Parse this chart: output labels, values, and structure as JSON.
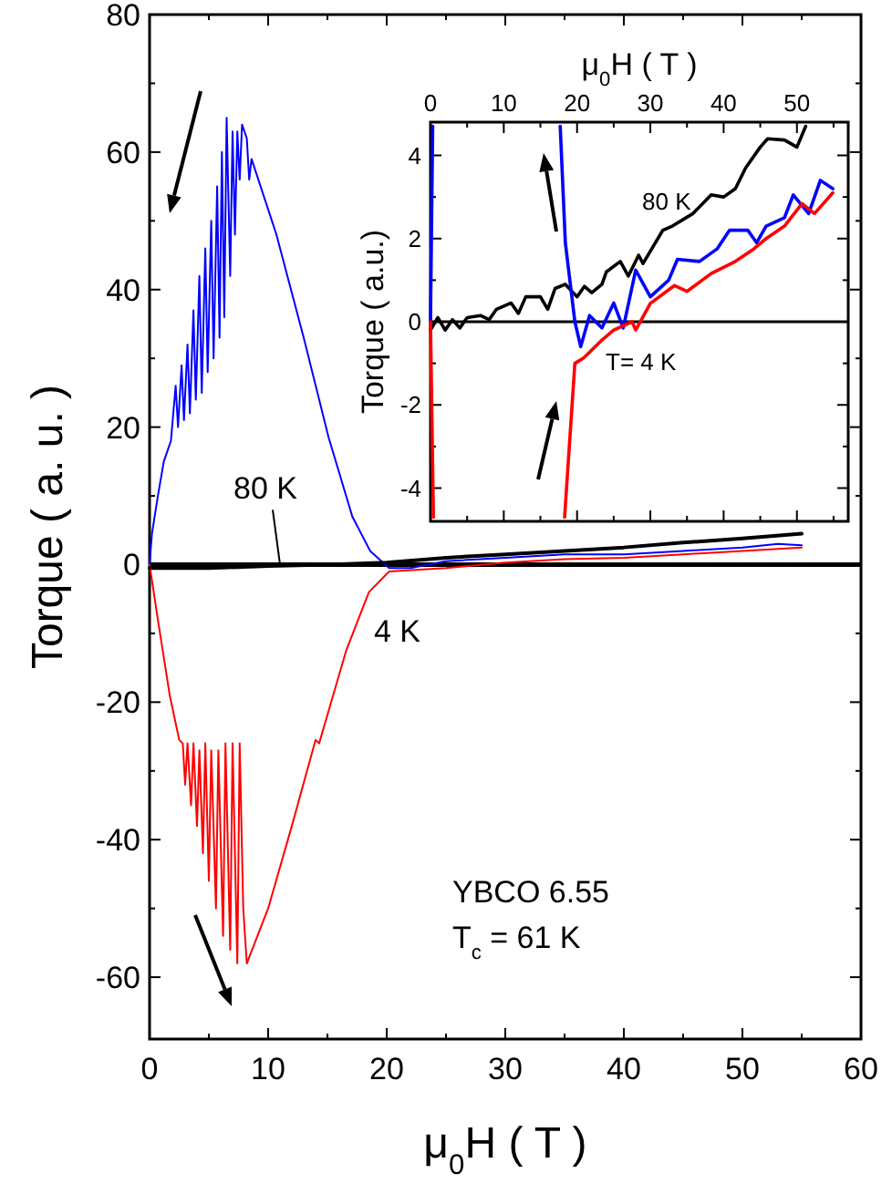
{
  "chart_data": [
    {
      "type": "line",
      "xlabel": "μ$_{0}$H ( T )",
      "ylabel": "Torque ( a. u. )",
      "xlim": [
        0,
        60
      ],
      "ylim": [
        -69,
        80
      ],
      "xticks": [
        0,
        {
          "value": 5,
          "label": null
        },
        10,
        {
          "value": 15,
          "label": null
        },
        20,
        {
          "value": 25,
          "label": null
        },
        30,
        {
          "value": 35,
          "label": null
        },
        40,
        {
          "value": 45,
          "label": null
        },
        50,
        {
          "value": 55,
          "label": null
        },
        60
      ],
      "yticks": [
        -60,
        {
          "value": -50,
          "label": null
        },
        -40,
        {
          "value": -30,
          "label": null
        },
        -20,
        {
          "value": -10,
          "label": null
        },
        0,
        {
          "value": 10,
          "label": null
        },
        20,
        {
          "value": 30,
          "label": null
        },
        40,
        {
          "value": 50,
          "label": null
        },
        60,
        {
          "value": 70,
          "label": null
        },
        80
      ],
      "grid": false,
      "line_style": "solid",
      "ref_lines": [
        {
          "axis": "y",
          "value": 0,
          "color": "#000000"
        }
      ],
      "series": [
        {
          "color": "#0000ff",
          "x": [
            0,
            0.2,
            0.7,
            1.2,
            1.8,
            2.2,
            2.4,
            2.7,
            2.9,
            3.2,
            3.4,
            3.7,
            3.9,
            4.2,
            4.4,
            4.7,
            4.9,
            5.2,
            5.4,
            5.7,
            5.9,
            6.1,
            6.3,
            6.5,
            6.8,
            7.0,
            7.2,
            7.4,
            7.6,
            7.8,
            8.2,
            8.4,
            8.6,
            10.7,
            13,
            15.1,
            17.1,
            18.6,
            20.2,
            22,
            25,
            30,
            35,
            40,
            45,
            50,
            53,
            55
          ],
          "values": [
            0,
            4.5,
            10,
            15,
            18,
            26,
            20,
            29,
            21,
            32,
            22,
            37,
            24,
            42,
            25,
            46,
            28,
            50,
            30,
            55,
            33,
            60,
            36,
            65,
            42,
            63,
            48,
            63,
            56,
            64,
            62,
            56,
            59,
            48,
            33,
            18.5,
            7,
            2,
            -0.5,
            -0.5,
            0.5,
            1,
            1.5,
            1.5,
            2,
            2.5,
            3,
            2.8
          ]
        },
        {
          "color": "#ff0000",
          "x": [
            0,
            0.7,
            1.7,
            2.5,
            2.8,
            3.0,
            3.2,
            3.5,
            3.7,
            4.0,
            4.2,
            4.5,
            4.7,
            5.0,
            5.2,
            5.6,
            5.8,
            6.2,
            6.4,
            6.8,
            7.0,
            7.4,
            7.6,
            7.9,
            8.2,
            10,
            12,
            14,
            14.3,
            16.6,
            18.5,
            20.2,
            25,
            30,
            35,
            40,
            45,
            50,
            55
          ],
          "values": [
            0,
            -8,
            -19,
            -25.5,
            -26,
            -32,
            -26,
            -35,
            -26,
            -38,
            -27,
            -42,
            -26,
            -46,
            -27,
            -50,
            -27,
            -54,
            -26,
            -56,
            -26,
            -58,
            -26,
            -50,
            -58,
            -50,
            -38,
            -25.5,
            -26,
            -12.4,
            -4,
            -1,
            -0.5,
            0.3,
            0.8,
            1,
            1.5,
            2,
            2.5
          ]
        },
        {
          "color": "#000000",
          "x": [
            0,
            5,
            10,
            15,
            20,
            25,
            30,
            35,
            40,
            45,
            50,
            55
          ],
          "values": [
            -0.5,
            -0.5,
            -0.2,
            0,
            0.3,
            1,
            1.5,
            2,
            2.5,
            3.2,
            3.8,
            4.5
          ]
        }
      ],
      "annotations": [
        {
          "text": "80 K",
          "x": 11,
          "y": 0
        },
        "4 K",
        "YBCO 6.55",
        "T$_{c}$ = 61 K"
      ]
    },
    {
      "type": "line",
      "xlabel": "μ$_{0}$H ( T )",
      "ylabel": "Torque ( a.u.)",
      "xlim": [
        0,
        57
      ],
      "ylim": [
        -4.8,
        4.8
      ],
      "xticks": [
        0,
        {
          "value": 5,
          "label": null
        },
        10,
        {
          "value": 15,
          "label": null
        },
        20,
        {
          "value": 25,
          "label": null
        },
        30,
        {
          "value": 35,
          "label": null
        },
        40,
        {
          "value": 45,
          "label": null
        },
        50,
        {
          "value": 55,
          "label": null
        }
      ],
      "yticks": [
        -4,
        {
          "value": -3,
          "label": null
        },
        -2,
        {
          "value": -1,
          "label": null
        },
        0,
        {
          "value": 1,
          "label": null
        },
        2,
        {
          "value": 3,
          "label": null
        },
        4
      ],
      "grid": false,
      "line_style": "solid",
      "ref_lines": [
        {
          "axis": "y",
          "value": 0,
          "color": "#000000"
        }
      ],
      "series": [
        {
          "color": "#000000",
          "x": [
            0,
            1,
            2,
            3,
            4,
            5,
            6.8,
            8,
            9,
            11,
            12,
            13,
            15,
            16,
            17,
            18.4,
            20,
            21,
            22,
            23.4,
            24,
            25.9,
            27,
            28.4,
            29,
            31.7,
            33,
            35.8,
            38.3,
            40,
            41.6,
            43,
            45,
            46,
            48.3,
            50,
            51.2
          ],
          "values": [
            -0.2,
            0.1,
            -0.2,
            0.05,
            -0.15,
            0.1,
            0.15,
            0.05,
            0.3,
            0.45,
            0.2,
            0.6,
            0.6,
            0.3,
            0.8,
            0.9,
            0.6,
            0.85,
            0.7,
            0.9,
            1.2,
            1.45,
            1.1,
            1.6,
            1.4,
            2.2,
            2.3,
            2.6,
            3.05,
            3.0,
            3.2,
            3.7,
            4.2,
            4.4,
            4.37,
            4.2,
            4.7
          ]
        },
        {
          "color": "#0000ff",
          "x": [
            0,
            0.3,
            1,
            17.7,
            18.4,
            19.7,
            20.5,
            21.7,
            23.4,
            25,
            26.3,
            28,
            30,
            32.5,
            33.7,
            36.7,
            39.1,
            40.8,
            43.3,
            44.5,
            45.8,
            48.3,
            49.5,
            51.6,
            53.2,
            54.9
          ],
          "values": [
            0,
            4.7,
            null,
            4.7,
            1.9,
            0,
            -0.6,
            0.15,
            -0.15,
            0.45,
            -0.15,
            1.24,
            0.6,
            1.0,
            1.5,
            1.45,
            1.75,
            2.2,
            2.2,
            1.9,
            2.3,
            2.5,
            3.05,
            2.6,
            3.4,
            3.2
          ]
        },
        {
          "color": "#ff0000",
          "x": [
            0,
            0.4,
            1,
            18.3,
            19.7,
            20.9,
            23.4,
            25,
            27.5,
            28,
            30,
            33.3,
            35,
            38.3,
            41.6,
            44.1,
            45.8,
            48.3,
            50.7,
            52.4,
            54.9
          ],
          "values": [
            0,
            -4.7,
            null,
            -4.7,
            -1.0,
            -0.87,
            -0.44,
            -0.2,
            0,
            -0.2,
            0.44,
            0.87,
            0.73,
            1.16,
            1.45,
            1.75,
            2.0,
            2.3,
            2.84,
            2.6,
            3.1
          ]
        }
      ],
      "annotations": [
        "80 K",
        "T= 4 K"
      ]
    }
  ]
}
